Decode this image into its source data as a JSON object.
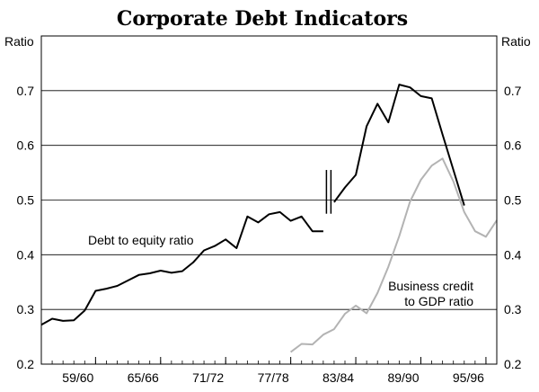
{
  "chart_data": {
    "type": "line",
    "title": "Corporate Debt Indicators",
    "y_unit_left": "Ratio",
    "y_unit_right": "Ratio",
    "ylim": [
      0.2,
      0.8
    ],
    "y_ticks": [
      "0.2",
      "0.3",
      "0.4",
      "0.5",
      "0.6",
      "0.7"
    ],
    "y_tick_values": [
      0.2,
      0.3,
      0.4,
      0.5,
      0.6,
      0.7
    ],
    "grid": "horizontal",
    "xlim": [
      "54/55",
      "96/97"
    ],
    "x_tick_labels": [
      "59/60",
      "65/66",
      "71/72",
      "77/78",
      "83/84",
      "89/90",
      "95/96"
    ],
    "series": [
      {
        "name": "Debt to equity ratio",
        "color": "#000000",
        "segments": [
          {
            "x": [
              "54/55",
              "55/56",
              "56/57",
              "57/58",
              "58/59",
              "59/60",
              "60/61",
              "61/62",
              "62/63",
              "63/64",
              "64/65",
              "65/66",
              "66/67",
              "67/68",
              "68/69",
              "69/70",
              "70/71",
              "71/72",
              "72/73",
              "73/74",
              "74/75",
              "75/76",
              "76/77",
              "77/78",
              "78/79",
              "79/80",
              "80/81"
            ],
            "y": [
              0.272,
              0.283,
              0.279,
              0.28,
              0.298,
              0.334,
              0.338,
              0.343,
              0.353,
              0.363,
              0.366,
              0.371,
              0.367,
              0.37,
              0.386,
              0.408,
              0.416,
              0.428,
              0.412,
              0.47,
              0.459,
              0.474,
              0.478,
              0.462,
              0.47,
              0.443,
              0.443
            ]
          },
          {
            "x": [
              "81/82",
              "82/83",
              "83/84",
              "84/85",
              "85/86",
              "86/87",
              "87/88",
              "88/89",
              "89/90",
              "90/91",
              "91/92",
              "92/93",
              "93/94"
            ],
            "y": [
              0.496,
              0.523,
              0.546,
              0.635,
              0.676,
              0.642,
              0.711,
              0.706,
              0.69,
              0.686,
              0.62,
              0.555,
              0.49
            ]
          }
        ]
      },
      {
        "name": "Business credit to GDP ratio",
        "color": "#b3b3b3",
        "segments": [
          {
            "x": [
              "77/78",
              "78/79",
              "79/80",
              "80/81",
              "81/82",
              "82/83",
              "83/84",
              "84/85",
              "85/86",
              "86/87",
              "87/88",
              "88/89",
              "89/90",
              "90/91",
              "91/92",
              "92/93",
              "93/94",
              "94/95",
              "95/96",
              "96/97"
            ],
            "y": [
              0.222,
              0.237,
              0.236,
              0.254,
              0.264,
              0.292,
              0.307,
              0.293,
              0.33,
              0.378,
              0.434,
              0.497,
              0.537,
              0.563,
              0.576,
              0.534,
              0.478,
              0.443,
              0.433,
              0.463
            ]
          }
        ]
      }
    ],
    "annotations": [
      {
        "text": "Debt to equity ratio"
      },
      {
        "text_lines": [
          "Business credit",
          "to GDP ratio"
        ]
      }
    ],
    "break_marker": {
      "x": "80/81",
      "y_range": [
        0.475,
        0.555
      ]
    }
  }
}
